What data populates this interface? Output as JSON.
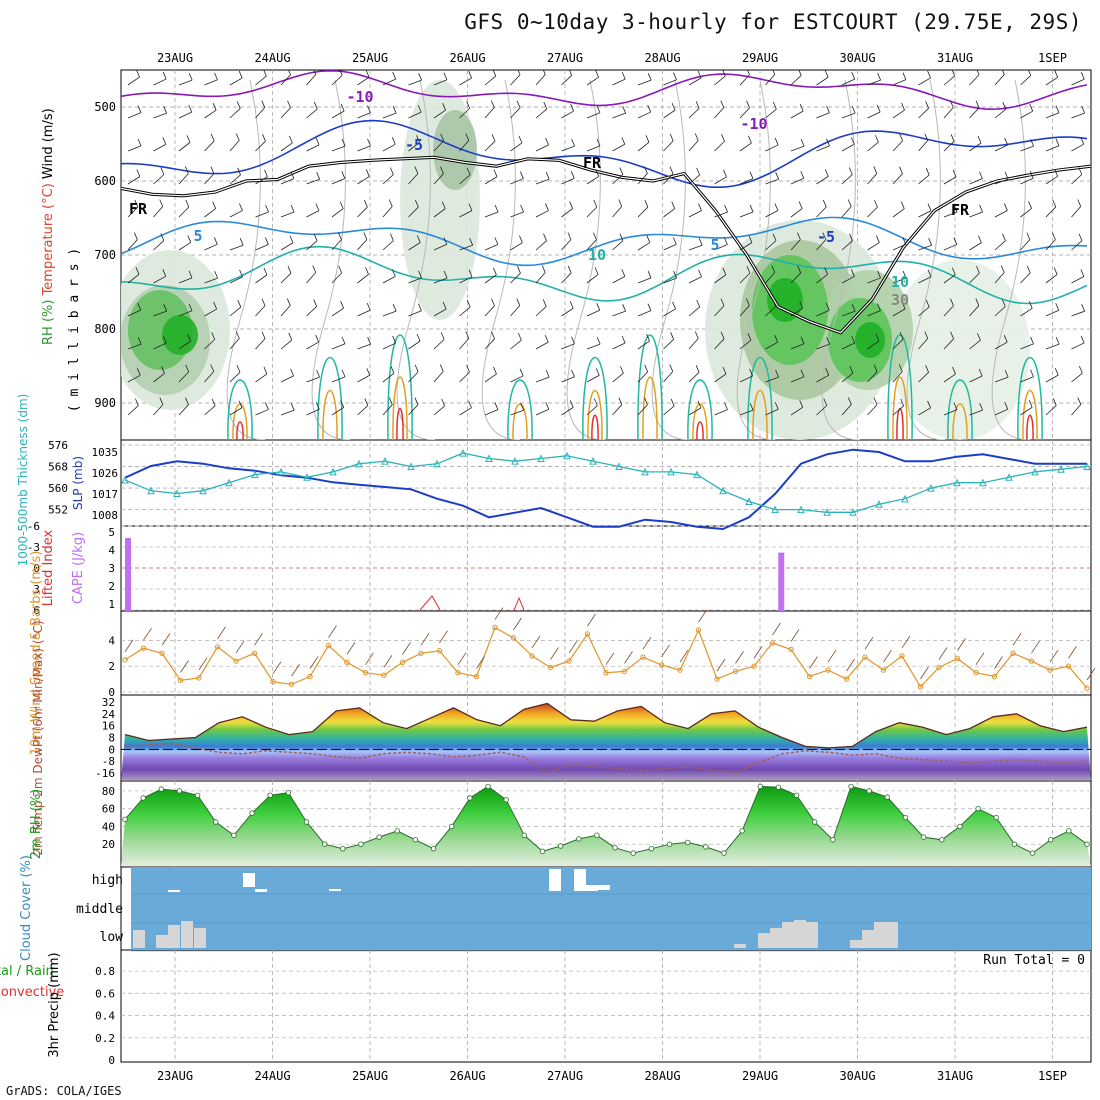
{
  "title": "GFS 0~10day 3-hourly for ESTCOURT (29.75E, 29S)",
  "footer": "GrADS: COLA/IGES",
  "run_total": "Run Total = 0",
  "colors": {
    "temperature": "#e0442a",
    "freezing": "#000000",
    "rh_green": "#22c02a",
    "thickness": "#2ab3b8",
    "slp": "#1c3cc8",
    "cape": "#c070f0",
    "lifted_index": "#e03030",
    "wind10m": "#e0962a",
    "rh2m": "#1a9a1a",
    "cloud": "#6aaad8",
    "precip_total": "#1a9a1a",
    "precip_conv": "#e03030"
  },
  "chart_data": [
    {
      "type": "heatmap",
      "panel": "upper-air",
      "ylabel_parts": [
        "Wind (m/s)",
        "Temperature (°C)",
        "RH (%)"
      ],
      "yunit": "( m i l l i b a r s )",
      "x_ticks": [
        "23AUG",
        "24AUG",
        "25AUG",
        "26AUG",
        "27AUG",
        "28AUG",
        "29AUG",
        "30AUG",
        "31AUG",
        "1SEP"
      ],
      "y_ticks": [
        500,
        600,
        700,
        800,
        900
      ],
      "ylim": [
        950,
        450
      ],
      "isotherm_labels": [
        "-10",
        "-10",
        "-5",
        "-5",
        "5",
        "5",
        "10",
        "10",
        "30",
        "FR",
        "FR",
        "FR"
      ],
      "freezing_level_mb": [
        610,
        618,
        620,
        615,
        600,
        598,
        580,
        575,
        572,
        570,
        568,
        575,
        580,
        570,
        572,
        585,
        595,
        600,
        590,
        640,
        700,
        770,
        790,
        805,
        760,
        690,
        640,
        615,
        600,
        592,
        585,
        580
      ]
    },
    {
      "type": "line",
      "panel": "thickness-slp",
      "ylabel_left": "1000-500mb Thickness (dm)",
      "ylabel_right": "SLP (mb)",
      "y_ticks_left": [
        "576",
        "568",
        "560",
        "552"
      ],
      "y_ticks_right": [
        "1035",
        "1026",
        "1017",
        "1008"
      ],
      "series": [
        {
          "name": "SLP (mb)",
          "values": [
            1024,
            1029,
            1031,
            1030,
            1028,
            1027,
            1025,
            1024,
            1022,
            1021,
            1020,
            1019,
            1015,
            1012,
            1007,
            1009,
            1011,
            1007,
            1003,
            1003,
            1006,
            1005,
            1003,
            1002,
            1007,
            1017,
            1030,
            1034,
            1036,
            1035,
            1031,
            1031,
            1033,
            1034,
            1032,
            1030,
            1030,
            1030
          ]
        },
        {
          "name": "1000-500mb Thickness (dm)",
          "values": [
            563,
            559,
            558,
            559,
            562,
            565,
            566,
            564,
            566,
            569,
            570,
            568,
            569,
            573,
            571,
            570,
            571,
            572,
            570,
            568,
            566,
            566,
            565,
            559,
            555,
            552,
            552,
            551,
            551,
            554,
            556,
            560,
            562,
            562,
            564,
            566,
            567,
            568
          ]
        }
      ]
    },
    {
      "type": "bar",
      "panel": "cape-li",
      "ylabel_left": "Lifted Index",
      "ylabel_right": "CAPE (J/kg)",
      "y_ticks_left": [
        "-6",
        "-3",
        "0",
        "3",
        "6"
      ],
      "y_ticks_right": [
        "5",
        "4",
        "3",
        "2",
        "1"
      ],
      "cape_bars": [
        {
          "day": 0.0,
          "value": 5.0
        },
        {
          "day": 6.7,
          "value": 4.0
        }
      ]
    },
    {
      "type": "line",
      "panel": "wind10m",
      "ylabel": "10m Wind Speed & Barbs (m/s)",
      "y_ticks": [
        "4",
        "2",
        "0"
      ],
      "ylim": [
        0,
        5
      ],
      "series": [
        {
          "name": "10m Wind Speed",
          "values": [
            2.5,
            3.4,
            3.0,
            0.9,
            1.1,
            3.5,
            2.4,
            3.0,
            0.8,
            0.6,
            1.2,
            3.6,
            2.3,
            1.5,
            1.3,
            2.3,
            3.0,
            3.2,
            1.5,
            1.2,
            5.0,
            4.2,
            2.8,
            1.9,
            2.4,
            4.5,
            1.5,
            1.6,
            2.7,
            2.1,
            1.7,
            4.8,
            1.0,
            1.6,
            2.0,
            3.8,
            3.3,
            1.2,
            1.7,
            1.0,
            2.7,
            1.7,
            2.8,
            0.4,
            1.9,
            2.6,
            1.5,
            1.2,
            3.0,
            2.4,
            1.7,
            2.0,
            0.3
          ]
        }
      ]
    },
    {
      "type": "area",
      "panel": "temp-dewpt",
      "ylabel": "2m Temp 2m DewPt (6hr Min/Max) (°C)",
      "y_ticks": [
        "32",
        "24",
        "16",
        "8",
        "0",
        "-8",
        "-16"
      ],
      "ylim": [
        -20,
        34
      ],
      "series": [
        {
          "name": "2m Temp",
          "values": [
            10,
            6,
            7,
            8,
            18,
            22,
            15,
            10,
            12,
            26,
            28,
            18,
            14,
            21,
            28,
            20,
            16,
            27,
            31,
            20,
            19,
            26,
            29,
            18,
            14,
            24,
            26,
            15,
            8,
            2,
            1,
            2,
            12,
            18,
            15,
            10,
            14,
            22,
            24,
            16,
            12,
            15
          ]
        },
        {
          "name": "2m DewPt",
          "values": [
            2,
            3,
            4,
            1,
            -2,
            -3,
            -1,
            -2,
            -3,
            -5,
            -6,
            -3,
            -2,
            -3,
            -5,
            -4,
            -2,
            -5,
            -16,
            -10,
            -12,
            -13,
            -14,
            -13,
            -12,
            -14,
            -16,
            -9,
            -3,
            -1,
            -2,
            -4,
            -3,
            -6,
            -7,
            -8,
            -9,
            -8,
            -7,
            -8,
            -9,
            -8
          ]
        }
      ]
    },
    {
      "type": "area",
      "panel": "rh2m",
      "ylabel": "2m RH (%)",
      "y_ticks": [
        "80",
        "60",
        "40",
        "20"
      ],
      "ylim": [
        0,
        90
      ],
      "series": [
        {
          "name": "2m RH",
          "values": [
            48,
            72,
            82,
            80,
            75,
            45,
            30,
            55,
            75,
            78,
            45,
            20,
            15,
            20,
            28,
            35,
            25,
            15,
            40,
            72,
            85,
            70,
            30,
            12,
            18,
            26,
            30,
            16,
            10,
            15,
            20,
            22,
            17,
            10,
            35,
            85,
            84,
            75,
            45,
            25,
            85,
            80,
            73,
            50,
            28,
            25,
            40,
            60,
            50,
            20,
            10,
            25,
            35,
            20
          ]
        }
      ]
    },
    {
      "type": "bar",
      "panel": "cloud",
      "ylabel": "Cloud Cover (%)",
      "categories": [
        "high",
        "middle",
        "low"
      ]
    },
    {
      "type": "bar",
      "panel": "precip",
      "ylabel_parts": [
        "Total / Rain",
        "Convective"
      ],
      "ylabel_right": "3hr Precip (mm)",
      "y_ticks": [
        "0.8",
        "0.6",
        "0.4",
        "0.2",
        "0"
      ],
      "ylim": [
        0,
        1
      ],
      "values": []
    }
  ]
}
